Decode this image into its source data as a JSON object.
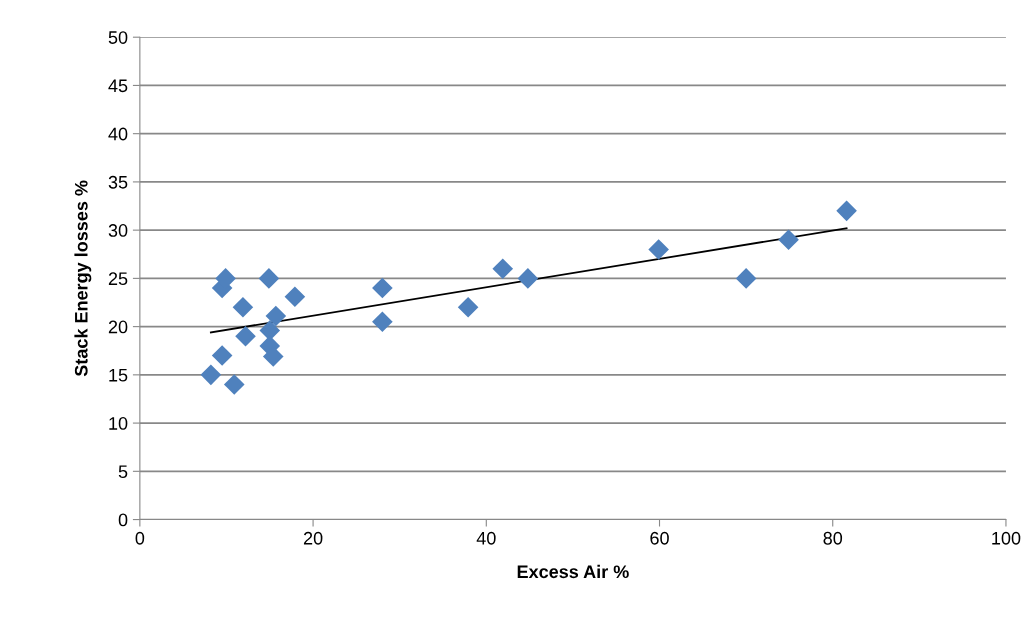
{
  "chart_data": {
    "type": "scatter",
    "xlabel": "Excess Air %",
    "ylabel": "Stack Energy losses %",
    "xlim": [
      0,
      100
    ],
    "xticks": [
      0,
      20,
      40,
      60,
      80,
      100
    ],
    "ylim": [
      0,
      50
    ],
    "yticks": [
      0,
      5,
      10,
      15,
      20,
      25,
      30,
      35,
      40,
      45,
      50
    ],
    "grid": "y",
    "legend": false,
    "series": [
      {
        "marker": "diamond",
        "color": "#4f81bd",
        "x": [
          8.2,
          9.5,
          9.5,
          9.9,
          10.9,
          11.9,
          12.2,
          14.9,
          15.0,
          15.7,
          15.0,
          15.4,
          17.9,
          28,
          28,
          37.9,
          41.9,
          44.8,
          59.9,
          70,
          74.9,
          81.6
        ],
        "values": [
          15,
          17,
          24,
          25,
          14,
          22,
          19,
          25,
          19.6,
          21.1,
          18,
          16.9,
          23.1,
          24,
          20.5,
          22,
          26,
          25,
          28,
          25,
          29,
          32
        ]
      },
      {
        "type": "line",
        "color": "#000000",
        "x": [
          8.2,
          81.6
        ],
        "values": [
          19.4,
          30.2
        ]
      }
    ]
  }
}
